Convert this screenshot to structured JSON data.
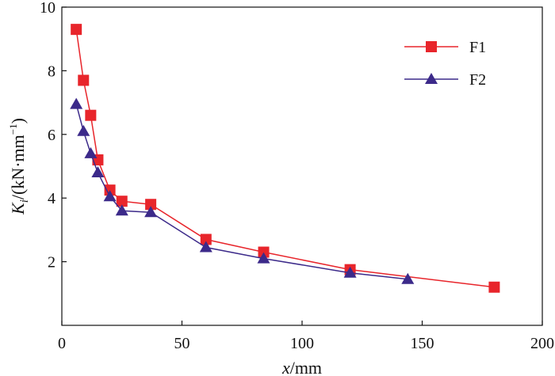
{
  "chart_data": {
    "type": "line",
    "xlabel_var": "x",
    "xlabel_unit": "/mm",
    "ylabel_var": "K",
    "ylabel_sub": "i",
    "ylabel_unit": "/(kN·mm",
    "ylabel_exp": "−1",
    "ylabel_close": ")",
    "xlim": [
      0,
      200
    ],
    "ylim": [
      0,
      10
    ],
    "xticks": [
      0,
      50,
      100,
      150,
      200
    ],
    "yticks": [
      2,
      4,
      6,
      8,
      10
    ],
    "legend_position": "top-right",
    "series": [
      {
        "name": "F1",
        "color": "#e8252b",
        "marker": "square",
        "x": [
          6,
          9,
          12,
          15,
          20,
          25,
          37,
          60,
          84,
          120,
          180
        ],
        "y": [
          9.3,
          7.7,
          6.6,
          5.2,
          4.25,
          3.9,
          3.8,
          2.7,
          2.3,
          1.75,
          1.2
        ]
      },
      {
        "name": "F2",
        "color": "#3c2a8a",
        "marker": "triangle",
        "x": [
          6,
          9,
          12,
          15,
          20,
          25,
          37,
          60,
          84,
          120,
          144
        ],
        "y": [
          6.95,
          6.1,
          5.4,
          4.8,
          4.05,
          3.6,
          3.55,
          2.45,
          2.1,
          1.65,
          1.45
        ]
      }
    ]
  }
}
